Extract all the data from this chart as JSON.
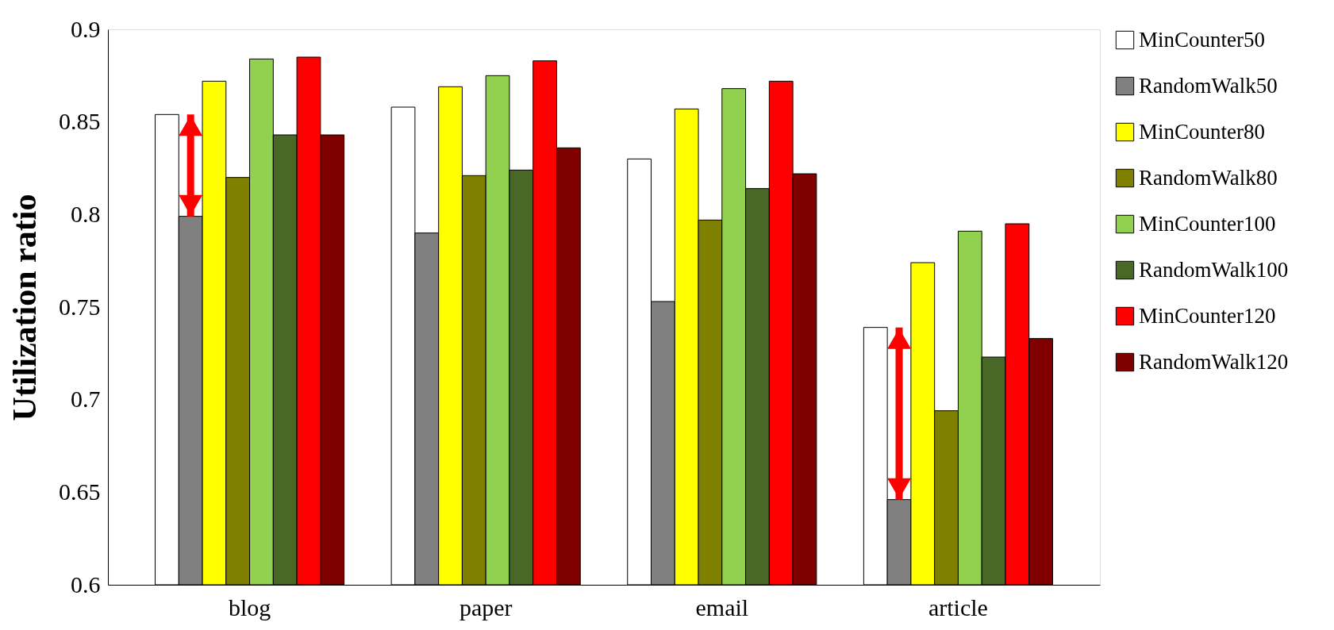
{
  "chart_data": {
    "type": "bar",
    "ylabel": "Utilization ratio",
    "categories": [
      "blog",
      "paper",
      "email",
      "article"
    ],
    "series": [
      {
        "name": "MinCounter50",
        "color": "#ffffff",
        "values": [
          0.854,
          0.858,
          0.83,
          0.739
        ]
      },
      {
        "name": "RandomWalk50",
        "color": "#808080",
        "values": [
          0.799,
          0.79,
          0.753,
          0.646
        ]
      },
      {
        "name": "MinCounter80",
        "color": "#ffff00",
        "values": [
          0.872,
          0.869,
          0.857,
          0.774
        ]
      },
      {
        "name": "RandomWalk80",
        "color": "#808000",
        "values": [
          0.82,
          0.821,
          0.797,
          0.694
        ]
      },
      {
        "name": "MinCounter100",
        "color": "#92d050",
        "values": [
          0.884,
          0.875,
          0.868,
          0.791
        ]
      },
      {
        "name": "RandomWalk100",
        "color": "#496828",
        "values": [
          0.843,
          0.824,
          0.814,
          0.723
        ]
      },
      {
        "name": "MinCounter120",
        "color": "#ff0000",
        "values": [
          0.885,
          0.883,
          0.872,
          0.795
        ]
      },
      {
        "name": "RandomWalk120",
        "color": "#800000",
        "values": [
          0.843,
          0.836,
          0.822,
          0.733
        ]
      }
    ],
    "ylim": [
      0.6,
      0.9
    ],
    "yticks": [
      0.6,
      0.65,
      0.7,
      0.75,
      0.8,
      0.85,
      0.9
    ],
    "grid": false,
    "legend": "right"
  }
}
